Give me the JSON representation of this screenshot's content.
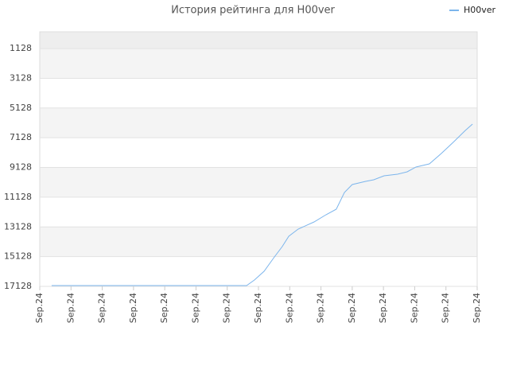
{
  "chart_data": {
    "type": "line",
    "title": "История рейтинга для H00ver",
    "x": [
      0.38,
      6.62,
      6.87,
      7.18,
      7.51,
      7.76,
      7.97,
      8.27,
      8.78,
      9.16,
      9.49,
      9.75,
      10.0,
      10.43,
      10.69,
      11.02,
      11.45,
      11.76,
      12.04,
      12.47,
      12.85,
      13.23,
      13.62,
      13.85
    ],
    "series": [
      {
        "name": "H00ver",
        "color": "#7cb5ec",
        "values": [
          17075,
          17075,
          16700,
          16111,
          15148,
          14452,
          13756,
          13274,
          12793,
          12311,
          11936,
          10812,
          10277,
          10063,
          9956,
          9688,
          9581,
          9420,
          9099,
          8885,
          8189,
          7440,
          6637,
          6209
        ]
      }
    ],
    "xlim": [
      0,
      14
    ],
    "xticks": [
      {
        "value": 0,
        "label": "Sep.24"
      },
      {
        "value": 1,
        "label": "Sep.24"
      },
      {
        "value": 2,
        "label": "Sep.24"
      },
      {
        "value": 3,
        "label": "Sep.24"
      },
      {
        "value": 4,
        "label": "Sep.24"
      },
      {
        "value": 5,
        "label": "Sep.24"
      },
      {
        "value": 6,
        "label": "Sep.24"
      },
      {
        "value": 7,
        "label": "Sep.24"
      },
      {
        "value": 8,
        "label": "Sep.24"
      },
      {
        "value": 9,
        "label": "Sep.24"
      },
      {
        "value": 10,
        "label": "Sep.24"
      },
      {
        "value": 11,
        "label": "Sep.24"
      },
      {
        "value": 12,
        "label": "Sep.24"
      },
      {
        "value": 13,
        "label": "Sep.24"
      },
      {
        "value": 14,
        "label": "Sep.24"
      }
    ],
    "ylim": [
      17128,
      0
    ],
    "yticks": [
      1128,
      3128,
      5128,
      7128,
      9128,
      11128,
      13128,
      15128,
      17128
    ],
    "grid": true,
    "legend": "top-right"
  }
}
